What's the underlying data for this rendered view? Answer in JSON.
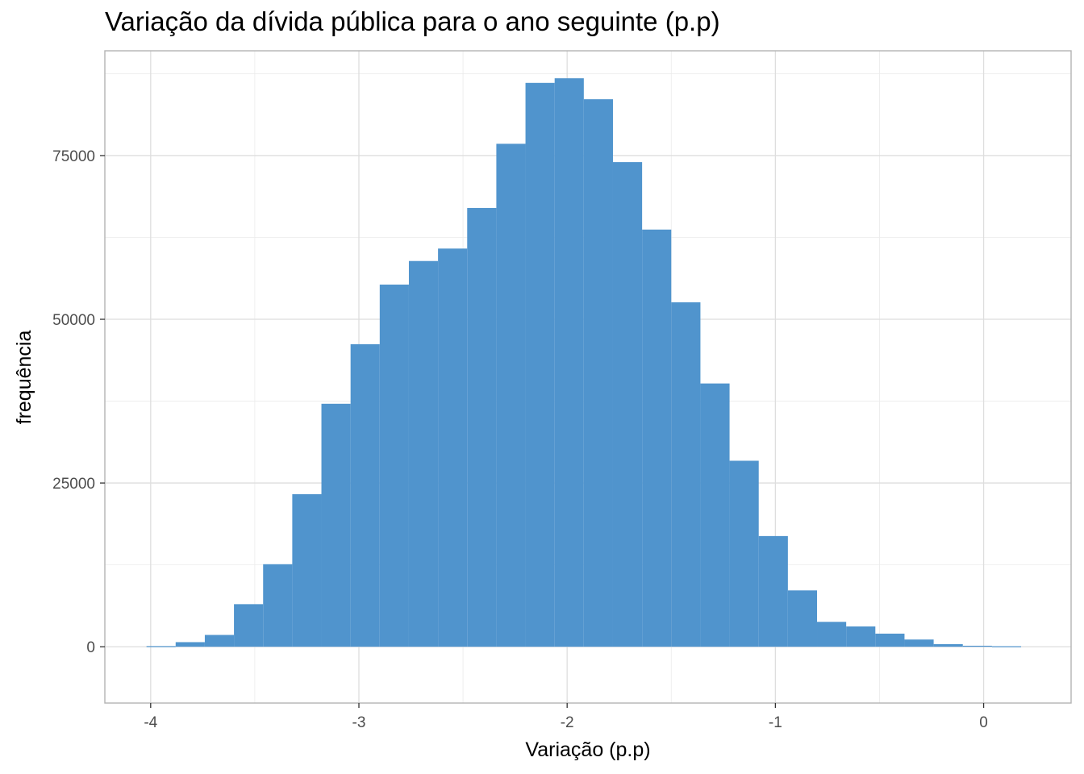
{
  "chart_data": {
    "type": "bar",
    "title": "Variação da dívida pública para o ano seguinte (p.p)",
    "xlabel": "Variação (p.p)",
    "ylabel": "frequência",
    "xlim": [
      -4.22,
      0.42
    ],
    "ylim": [
      -8600,
      91000
    ],
    "x_ticks": [
      -4,
      -3,
      -2,
      -1,
      0
    ],
    "x_tick_labels": [
      "-4",
      "-3",
      "-2",
      "-1",
      "0"
    ],
    "y_ticks": [
      0,
      25000,
      50000,
      75000
    ],
    "y_tick_labels": [
      "0",
      "25000",
      "50000",
      "75000"
    ],
    "x_minor_ticks": [
      -3.5,
      -2.5,
      -1.5,
      -0.5
    ],
    "y_minor_ticks": [
      12500,
      37500,
      62500,
      87500
    ],
    "grid": true,
    "legend": "none",
    "bar_color": "#5094cd",
    "bins": [
      {
        "x0": -4.02,
        "x1": -3.88,
        "count": 100
      },
      {
        "x0": -3.88,
        "x1": -3.74,
        "count": 700
      },
      {
        "x0": -3.74,
        "x1": -3.6,
        "count": 1800
      },
      {
        "x0": -3.6,
        "x1": -3.46,
        "count": 6500
      },
      {
        "x0": -3.46,
        "x1": -3.32,
        "count": 12600
      },
      {
        "x0": -3.32,
        "x1": -3.18,
        "count": 23300
      },
      {
        "x0": -3.18,
        "x1": -3.04,
        "count": 37100
      },
      {
        "x0": -3.04,
        "x1": -2.9,
        "count": 46200
      },
      {
        "x0": -2.9,
        "x1": -2.76,
        "count": 55300
      },
      {
        "x0": -2.76,
        "x1": -2.62,
        "count": 58900
      },
      {
        "x0": -2.62,
        "x1": -2.48,
        "count": 60800
      },
      {
        "x0": -2.48,
        "x1": -2.34,
        "count": 67000
      },
      {
        "x0": -2.34,
        "x1": -2.2,
        "count": 76800
      },
      {
        "x0": -2.2,
        "x1": -2.06,
        "count": 86100
      },
      {
        "x0": -2.06,
        "x1": -1.92,
        "count": 86800
      },
      {
        "x0": -1.92,
        "x1": -1.78,
        "count": 83600
      },
      {
        "x0": -1.78,
        "x1": -1.64,
        "count": 74000
      },
      {
        "x0": -1.64,
        "x1": -1.5,
        "count": 63700
      },
      {
        "x0": -1.5,
        "x1": -1.36,
        "count": 52600
      },
      {
        "x0": -1.36,
        "x1": -1.22,
        "count": 40200
      },
      {
        "x0": -1.22,
        "x1": -1.08,
        "count": 28400
      },
      {
        "x0": -1.08,
        "x1": -0.94,
        "count": 16900
      },
      {
        "x0": -0.94,
        "x1": -0.8,
        "count": 8600
      },
      {
        "x0": -0.8,
        "x1": -0.66,
        "count": 3800
      },
      {
        "x0": -0.66,
        "x1": -0.52,
        "count": 3100
      },
      {
        "x0": -0.52,
        "x1": -0.38,
        "count": 2000
      },
      {
        "x0": -0.38,
        "x1": -0.24,
        "count": 1100
      },
      {
        "x0": -0.24,
        "x1": -0.1,
        "count": 400
      },
      {
        "x0": -0.1,
        "x1": 0.04,
        "count": 150
      },
      {
        "x0": 0.04,
        "x1": 0.18,
        "count": 80
      }
    ]
  }
}
